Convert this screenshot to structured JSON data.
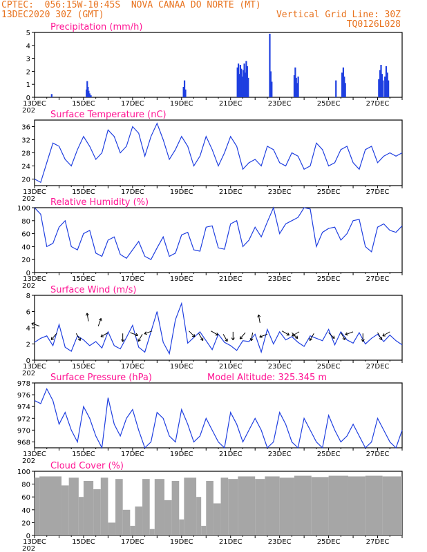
{
  "header": {
    "line1": "CPTEC:  056:15W-10:45S  NOVA CANAA DO NORTE (MT)",
    "line2_left": "13DEC2020 30Z (GMT)",
    "line2_right": "Vertical Grid Line: 30Z",
    "line3_right": "TQ0126L028"
  },
  "colors": {
    "header": "#e8731f",
    "titles": "#ff1493",
    "series": "#1f3fe0",
    "cloud": "#a6a6a6"
  },
  "x_axis": {
    "tick_labels": [
      "13DEC",
      "15DEC",
      "17DEC",
      "19DEC",
      "21DEC",
      "23DEC",
      "25DEC",
      "27DEC"
    ],
    "year_fragment": "202"
  },
  "chart_data": [
    {
      "type": "bar",
      "title": "Precipitation (mm/h)",
      "ylim": [
        0,
        5
      ],
      "yticks": [
        "0",
        "1",
        "2",
        "3",
        "4",
        "5"
      ],
      "bars": [
        {
          "t": 0.7,
          "v": 0.25
        },
        {
          "t": 2.12,
          "v": 0.6
        },
        {
          "t": 2.15,
          "v": 1.25
        },
        {
          "t": 2.18,
          "v": 0.8
        },
        {
          "t": 2.21,
          "v": 0.5
        },
        {
          "t": 2.25,
          "v": 0.3
        },
        {
          "t": 2.3,
          "v": 0.15
        },
        {
          "t": 6.08,
          "v": 0.8
        },
        {
          "t": 6.12,
          "v": 1.3
        },
        {
          "t": 6.16,
          "v": 0.6
        },
        {
          "t": 8.28,
          "v": 2.3
        },
        {
          "t": 8.32,
          "v": 2.6
        },
        {
          "t": 8.36,
          "v": 1.8
        },
        {
          "t": 8.4,
          "v": 2.5
        },
        {
          "t": 8.44,
          "v": 2.2
        },
        {
          "t": 8.48,
          "v": 1.6
        },
        {
          "t": 8.52,
          "v": 2.1
        },
        {
          "t": 8.56,
          "v": 2.6
        },
        {
          "t": 8.6,
          "v": 1.9
        },
        {
          "t": 8.64,
          "v": 2.8
        },
        {
          "t": 8.68,
          "v": 2.4
        },
        {
          "t": 8.72,
          "v": 1.5
        },
        {
          "t": 9.6,
          "v": 4.9
        },
        {
          "t": 9.64,
          "v": 2.0
        },
        {
          "t": 9.68,
          "v": 1.2
        },
        {
          "t": 10.6,
          "v": 1.7
        },
        {
          "t": 10.64,
          "v": 2.3
        },
        {
          "t": 10.68,
          "v": 1.5
        },
        {
          "t": 10.72,
          "v": 1.1
        },
        {
          "t": 10.76,
          "v": 1.6
        },
        {
          "t": 12.3,
          "v": 1.3
        },
        {
          "t": 12.55,
          "v": 1.9
        },
        {
          "t": 12.6,
          "v": 2.3
        },
        {
          "t": 12.64,
          "v": 1.6
        },
        {
          "t": 12.68,
          "v": 1.1
        },
        {
          "t": 14.05,
          "v": 1.4
        },
        {
          "t": 14.1,
          "v": 2.1
        },
        {
          "t": 14.14,
          "v": 2.5
        },
        {
          "t": 14.18,
          "v": 1.8
        },
        {
          "t": 14.22,
          "v": 1.3
        },
        {
          "t": 14.3,
          "v": 1.6
        },
        {
          "t": 14.35,
          "v": 2.4
        },
        {
          "t": 14.4,
          "v": 1.9
        },
        {
          "t": 14.44,
          "v": 1.3
        }
      ]
    },
    {
      "type": "line",
      "title": "Surface Temperature (nC)",
      "ylim": [
        18,
        38
      ],
      "yticks": [
        "20",
        "24",
        "28",
        "32",
        "36"
      ],
      "x": [
        0,
        0.25,
        0.5,
        0.75,
        1.0,
        1.25,
        1.5,
        1.75,
        2.0,
        2.25,
        2.5,
        2.75,
        3.0,
        3.25,
        3.5,
        3.75,
        4.0,
        4.25,
        4.5,
        4.75,
        5.0,
        5.25,
        5.5,
        5.75,
        6.0,
        6.25,
        6.5,
        6.75,
        7.0,
        7.25,
        7.5,
        7.75,
        8.0,
        8.25,
        8.5,
        8.75,
        9.0,
        9.25,
        9.5,
        9.75,
        10.0,
        10.25,
        10.5,
        10.75,
        11.0,
        11.25,
        11.5,
        11.75,
        12.0,
        12.25,
        12.5,
        12.75,
        13.0,
        13.25,
        13.5,
        13.75,
        14.0,
        14.25,
        14.5,
        14.75,
        15.0
      ],
      "y": [
        20,
        19,
        25,
        31,
        30,
        26,
        24,
        29,
        33,
        30,
        26,
        28,
        35,
        33,
        28,
        30,
        36,
        34,
        27,
        33,
        37,
        32,
        26,
        29,
        33,
        30,
        24,
        27,
        33,
        29,
        24,
        28,
        33,
        30,
        23,
        25,
        26,
        24,
        30,
        29,
        25,
        24,
        28,
        27,
        23,
        24,
        31,
        29,
        24,
        25,
        29,
        30,
        25,
        23,
        29,
        30,
        25,
        27,
        28,
        27,
        28
      ]
    },
    {
      "type": "line",
      "title": "Relative Humidity (%)",
      "ylim": [
        0,
        100
      ],
      "yticks": [
        "0",
        "20",
        "40",
        "60",
        "80",
        "100"
      ],
      "x": [
        0,
        0.25,
        0.5,
        0.75,
        1.0,
        1.25,
        1.5,
        1.75,
        2.0,
        2.25,
        2.5,
        2.75,
        3.0,
        3.25,
        3.5,
        3.75,
        4.0,
        4.25,
        4.5,
        4.75,
        5.0,
        5.25,
        5.5,
        5.75,
        6.0,
        6.25,
        6.5,
        6.75,
        7.0,
        7.25,
        7.5,
        7.75,
        8.0,
        8.25,
        8.5,
        8.75,
        9.0,
        9.25,
        9.5,
        9.75,
        10.0,
        10.25,
        10.5,
        10.75,
        11.0,
        11.25,
        11.5,
        11.75,
        12.0,
        12.25,
        12.5,
        12.75,
        13.0,
        13.25,
        13.5,
        13.75,
        14.0,
        14.25,
        14.5,
        14.75,
        15.0
      ],
      "y": [
        100,
        90,
        40,
        45,
        70,
        80,
        40,
        35,
        60,
        65,
        30,
        25,
        50,
        55,
        28,
        22,
        35,
        48,
        25,
        20,
        38,
        55,
        25,
        30,
        58,
        62,
        35,
        33,
        70,
        72,
        38,
        36,
        75,
        80,
        40,
        50,
        70,
        55,
        78,
        100,
        60,
        75,
        80,
        85,
        100,
        98,
        40,
        62,
        68,
        70,
        50,
        60,
        80,
        82,
        40,
        32,
        70,
        75,
        65,
        62,
        72
      ]
    },
    {
      "type": "line",
      "title": "Surface Wind (m/s)",
      "ylim": [
        0,
        8
      ],
      "yticks": [
        "0",
        "2",
        "4",
        "6",
        "8"
      ],
      "x": [
        0,
        0.25,
        0.5,
        0.75,
        1.0,
        1.25,
        1.5,
        1.75,
        2.0,
        2.25,
        2.5,
        2.75,
        3.0,
        3.25,
        3.5,
        3.75,
        4.0,
        4.25,
        4.5,
        4.75,
        5.0,
        5.25,
        5.5,
        5.75,
        6.0,
        6.25,
        6.5,
        6.75,
        7.0,
        7.25,
        7.5,
        7.75,
        8.0,
        8.25,
        8.5,
        8.75,
        9.0,
        9.25,
        9.5,
        9.75,
        10.0,
        10.25,
        10.5,
        10.75,
        11.0,
        11.25,
        11.5,
        11.75,
        12.0,
        12.25,
        12.5,
        12.75,
        13.0,
        13.25,
        13.5,
        13.75,
        14.0,
        14.25,
        14.5,
        14.75,
        15.0
      ],
      "y": [
        2.2,
        2.7,
        3.0,
        1.8,
        4.4,
        1.6,
        1.1,
        3.0,
        2.5,
        1.8,
        2.3,
        1.5,
        3.5,
        1.8,
        1.4,
        2.8,
        4.3,
        1.6,
        1.0,
        3.5,
        6.0,
        2.2,
        0.8,
        5.0,
        7.0,
        2.1,
        2.8,
        3.5,
        2.4,
        1.3,
        3.2,
        2.2,
        1.8,
        1.2,
        2.4,
        2.3,
        3.2,
        1.0,
        3.8,
        2.0,
        3.5,
        2.5,
        2.9,
        2.2,
        1.7,
        3.0,
        2.7,
        2.4,
        3.8,
        1.9,
        3.5,
        2.5,
        2.1,
        3.4,
        2.0,
        2.7,
        3.2,
        2.3,
        3.1,
        2.4,
        1.9
      ],
      "arrows": [
        {
          "t": 0.2,
          "speed": 4.2,
          "ang": 160
        },
        {
          "t": 0.9,
          "speed": 3.3,
          "ang": -130
        },
        {
          "t": 1.7,
          "speed": 3.3,
          "ang": -60
        },
        {
          "t": 2.2,
          "speed": 4.8,
          "ang": 100
        },
        {
          "t": 2.6,
          "speed": 4.2,
          "ang": 70
        },
        {
          "t": 3.0,
          "speed": 3.4,
          "ang": -150
        },
        {
          "t": 3.6,
          "speed": 3.3,
          "ang": -90
        },
        {
          "t": 3.9,
          "speed": 3.4,
          "ang": -20
        },
        {
          "t": 4.4,
          "speed": 3.2,
          "ang": -120
        },
        {
          "t": 4.8,
          "speed": 3.6,
          "ang": -160
        },
        {
          "t": 6.3,
          "speed": 3.6,
          "ang": -45
        },
        {
          "t": 6.7,
          "speed": 3.3,
          "ang": -60
        },
        {
          "t": 7.2,
          "speed": 3.6,
          "ang": -30
        },
        {
          "t": 7.7,
          "speed": 3.2,
          "ang": -60
        },
        {
          "t": 8.1,
          "speed": 3.5,
          "ang": -90
        },
        {
          "t": 8.6,
          "speed": 3.4,
          "ang": -130
        },
        {
          "t": 8.9,
          "speed": 3.4,
          "ang": -100
        },
        {
          "t": 9.2,
          "speed": 4.6,
          "ang": 100
        },
        {
          "t": 9.5,
          "speed": 3.2,
          "ang": -160
        },
        {
          "t": 10.1,
          "speed": 3.6,
          "ang": -30
        },
        {
          "t": 10.5,
          "speed": 3.4,
          "ang": -45
        },
        {
          "t": 10.8,
          "speed": 3.5,
          "ang": -150
        },
        {
          "t": 11.4,
          "speed": 3.3,
          "ang": -120
        },
        {
          "t": 12.0,
          "speed": 3.4,
          "ang": -45
        },
        {
          "t": 12.5,
          "speed": 3.4,
          "ang": -60
        },
        {
          "t": 13.0,
          "speed": 3.5,
          "ang": -160
        },
        {
          "t": 13.4,
          "speed": 3.3,
          "ang": -90
        },
        {
          "t": 14.0,
          "speed": 3.4,
          "ang": -60
        },
        {
          "t": 14.5,
          "speed": 3.5,
          "ang": -150
        }
      ]
    },
    {
      "type": "line",
      "title": "Surface Pressure (hPa)",
      "subtitle": "Model Altitude: 325.345 m",
      "ylim": [
        967,
        978
      ],
      "yticks": [
        "968",
        "970",
        "972",
        "974",
        "976",
        "978"
      ],
      "x": [
        0,
        0.25,
        0.5,
        0.75,
        1.0,
        1.25,
        1.5,
        1.75,
        2.0,
        2.25,
        2.5,
        2.75,
        3.0,
        3.25,
        3.5,
        3.75,
        4.0,
        4.25,
        4.5,
        4.75,
        5.0,
        5.25,
        5.5,
        5.75,
        6.0,
        6.25,
        6.5,
        6.75,
        7.0,
        7.25,
        7.5,
        7.75,
        8.0,
        8.25,
        8.5,
        8.75,
        9.0,
        9.25,
        9.5,
        9.75,
        10.0,
        10.25,
        10.5,
        10.75,
        11.0,
        11.25,
        11.5,
        11.75,
        12.0,
        12.25,
        12.5,
        12.75,
        13.0,
        13.25,
        13.5,
        13.75,
        14.0,
        14.25,
        14.5,
        14.75,
        15.0
      ],
      "y": [
        975,
        974.5,
        977,
        975,
        971,
        973,
        970,
        968,
        974,
        972,
        969,
        967,
        975.5,
        971,
        969,
        972,
        973.5,
        970,
        967,
        968,
        973,
        972,
        969,
        968,
        973.5,
        971,
        968,
        969,
        972,
        970,
        968,
        967,
        973,
        971,
        968,
        970,
        972,
        970,
        967,
        968,
        973,
        971,
        968,
        967,
        972,
        970,
        968,
        967,
        972.5,
        970,
        968,
        969,
        971,
        969,
        967,
        968,
        972,
        970,
        968,
        967,
        970
      ]
    },
    {
      "type": "bar",
      "title": "Cloud Cover (%)",
      "ylim": [
        0,
        100
      ],
      "yticks": [
        "0",
        "20",
        "40",
        "60",
        "80",
        "100"
      ],
      "segments": [
        {
          "t0": 0,
          "t1": 0.2,
          "v": 90
        },
        {
          "t0": 0.2,
          "t1": 1.1,
          "v": 92
        },
        {
          "t0": 1.1,
          "t1": 1.4,
          "v": 78
        },
        {
          "t0": 1.4,
          "t1": 1.8,
          "v": 90
        },
        {
          "t0": 1.8,
          "t1": 2.0,
          "v": 60
        },
        {
          "t0": 2.0,
          "t1": 2.4,
          "v": 85
        },
        {
          "t0": 2.4,
          "t1": 2.7,
          "v": 72
        },
        {
          "t0": 2.7,
          "t1": 3.0,
          "v": 90
        },
        {
          "t0": 3.0,
          "t1": 3.3,
          "v": 20
        },
        {
          "t0": 3.3,
          "t1": 3.6,
          "v": 88
        },
        {
          "t0": 3.6,
          "t1": 3.9,
          "v": 40
        },
        {
          "t0": 3.9,
          "t1": 4.1,
          "v": 15
        },
        {
          "t0": 4.1,
          "t1": 4.4,
          "v": 45
        },
        {
          "t0": 4.4,
          "t1": 4.7,
          "v": 88
        },
        {
          "t0": 4.7,
          "t1": 4.9,
          "v": 10
        },
        {
          "t0": 4.9,
          "t1": 5.3,
          "v": 88
        },
        {
          "t0": 5.3,
          "t1": 5.6,
          "v": 55
        },
        {
          "t0": 5.6,
          "t1": 5.9,
          "v": 85
        },
        {
          "t0": 5.9,
          "t1": 6.1,
          "v": 25
        },
        {
          "t0": 6.1,
          "t1": 6.6,
          "v": 90
        },
        {
          "t0": 6.6,
          "t1": 6.8,
          "v": 60
        },
        {
          "t0": 6.8,
          "t1": 7.0,
          "v": 15
        },
        {
          "t0": 7.0,
          "t1": 7.3,
          "v": 85
        },
        {
          "t0": 7.3,
          "t1": 7.6,
          "v": 50
        },
        {
          "t0": 7.6,
          "t1": 7.9,
          "v": 90
        },
        {
          "t0": 7.9,
          "t1": 8.3,
          "v": 88
        },
        {
          "t0": 8.3,
          "t1": 9.0,
          "v": 92
        },
        {
          "t0": 9.0,
          "t1": 9.4,
          "v": 88
        },
        {
          "t0": 9.4,
          "t1": 10.0,
          "v": 92
        },
        {
          "t0": 10.0,
          "t1": 10.6,
          "v": 90
        },
        {
          "t0": 10.6,
          "t1": 11.3,
          "v": 93
        },
        {
          "t0": 11.3,
          "t1": 12.0,
          "v": 91
        },
        {
          "t0": 12.0,
          "t1": 12.8,
          "v": 93
        },
        {
          "t0": 12.8,
          "t1": 13.5,
          "v": 92
        },
        {
          "t0": 13.5,
          "t1": 14.2,
          "v": 93
        },
        {
          "t0": 14.2,
          "t1": 15.0,
          "v": 92
        }
      ]
    }
  ]
}
